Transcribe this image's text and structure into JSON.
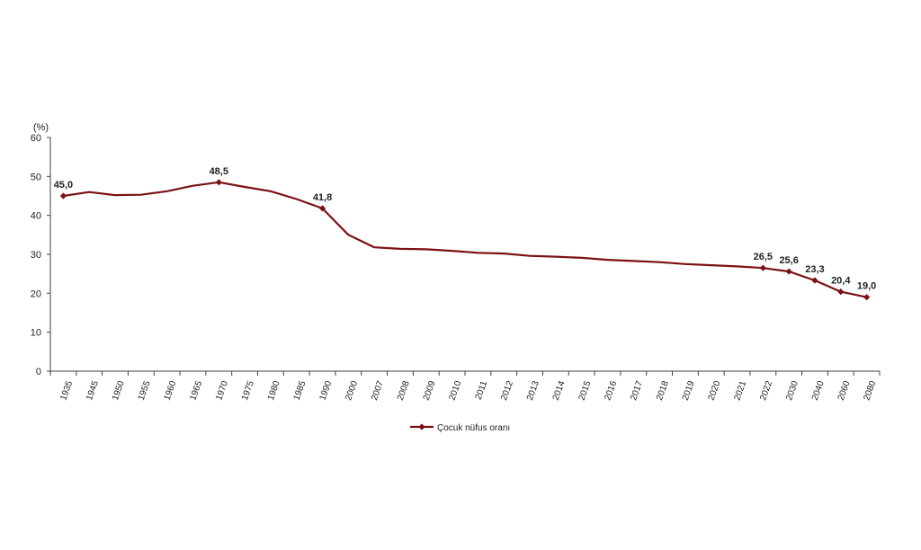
{
  "chart_data": {
    "type": "line",
    "title": "",
    "xlabel": "",
    "ylabel": "(%)",
    "ylim": [
      0,
      60
    ],
    "yticks": [
      0,
      10,
      20,
      30,
      40,
      50,
      60
    ],
    "grid": false,
    "legend": "bottom-center",
    "categories": [
      "1935",
      "1945",
      "1950",
      "1955",
      "1960",
      "1965",
      "1970",
      "1975",
      "1980",
      "1985",
      "1990",
      "2000",
      "2007",
      "2008",
      "2009",
      "2010",
      "2011",
      "2012",
      "2013",
      "2014",
      "2015",
      "2016",
      "2017",
      "2018",
      "2019",
      "2020",
      "2021",
      "2022",
      "2030",
      "2040",
      "2060",
      "2080"
    ],
    "series": [
      {
        "name": "Çocuk nüfus oranı",
        "color": "#7b1113",
        "values": [
          45.0,
          46.0,
          45.2,
          45.3,
          46.2,
          47.6,
          48.5,
          47.3,
          46.2,
          44.2,
          41.8,
          35.0,
          31.8,
          31.4,
          31.3,
          30.9,
          30.4,
          30.2,
          29.6,
          29.4,
          29.1,
          28.6,
          28.3,
          28.0,
          27.5,
          27.2,
          26.9,
          26.5,
          25.6,
          23.3,
          20.4,
          19.0
        ]
      }
    ],
    "data_labels": [
      {
        "category": "1935",
        "text": "45,0"
      },
      {
        "category": "1970",
        "text": "48,5"
      },
      {
        "category": "1990",
        "text": "41,8"
      },
      {
        "category": "2022",
        "text": "26,5"
      },
      {
        "category": "2030",
        "text": "25,6"
      },
      {
        "category": "2040",
        "text": "23,3"
      },
      {
        "category": "2060",
        "text": "20,4"
      },
      {
        "category": "2080",
        "text": "19,0"
      }
    ],
    "marker_categories": [
      "1935",
      "1970",
      "1990",
      "2022",
      "2030",
      "2040",
      "2060",
      "2080"
    ]
  }
}
